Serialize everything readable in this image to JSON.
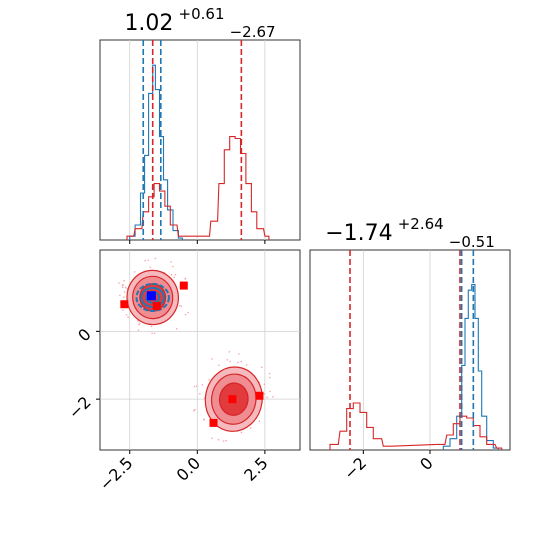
{
  "chart_data": [
    {
      "type": "histogram",
      "panel": "marginal-param-1",
      "title": {
        "base": "1.02",
        "sup": "+0.61",
        "sub": "−2.67"
      },
      "x_range": [
        -3.6,
        3.8
      ],
      "grid": true,
      "series": [
        {
          "color": "#1f77b4",
          "bins": [
            [
              -2.5,
              0.02
            ],
            [
              -2.3,
              0.08
            ],
            [
              -2.1,
              0.25
            ],
            [
              -1.95,
              0.45
            ],
            [
              -1.8,
              0.78
            ],
            [
              -1.65,
              0.93
            ],
            [
              -1.55,
              0.8
            ],
            [
              -1.4,
              0.55
            ],
            [
              -1.25,
              0.32
            ],
            [
              -1.1,
              0.16
            ],
            [
              -0.9,
              0.05
            ],
            [
              -0.7,
              0.01
            ]
          ]
        },
        {
          "color": "#d62728",
          "bins": [
            [
              -2.6,
              0.02
            ],
            [
              -2.3,
              0.06
            ],
            [
              -2.0,
              0.15
            ],
            [
              -1.8,
              0.23
            ],
            [
              -1.6,
              0.3
            ],
            [
              -1.4,
              0.26
            ],
            [
              -1.2,
              0.18
            ],
            [
              -1.0,
              0.08
            ],
            [
              -0.7,
              0.02
            ],
            [
              0.2,
              0.02
            ],
            [
              0.5,
              0.1
            ],
            [
              0.8,
              0.3
            ],
            [
              1.0,
              0.48
            ],
            [
              1.2,
              0.55
            ],
            [
              1.4,
              0.54
            ],
            [
              1.6,
              0.46
            ],
            [
              1.8,
              0.3
            ],
            [
              2.0,
              0.15
            ],
            [
              2.2,
              0.06
            ],
            [
              2.5,
              0.02
            ]
          ]
        }
      ],
      "quantile_lines": [
        {
          "x": -2.0,
          "color": "#1f77b4"
        },
        {
          "x": -1.35,
          "color": "#1f77b4"
        },
        {
          "x": -1.65,
          "color": "#d62728"
        },
        {
          "x": 1.63,
          "color": "#d62728"
        }
      ]
    },
    {
      "type": "contour-scatter",
      "panel": "joint",
      "x_range": [
        -3.6,
        3.8
      ],
      "y_range": [
        -3.5,
        2.4
      ],
      "x_ticks": [
        "-2.5",
        "0.0",
        "2.5"
      ],
      "y_ticks": [
        "0",
        "-2"
      ],
      "grid": true,
      "red_markers": [
        [
          -2.7,
          0.8
        ],
        [
          -1.5,
          0.75
        ],
        [
          -0.5,
          1.35
        ],
        [
          1.3,
          -2.0
        ],
        [
          2.3,
          -1.9
        ],
        [
          0.6,
          -2.7
        ]
      ],
      "blue_markers": [
        [
          -1.7,
          1.05
        ]
      ],
      "red_blobs": [
        {
          "cx": -1.65,
          "cy": 1.0,
          "rx": 0.95,
          "ry": 0.8
        },
        {
          "cx": 1.35,
          "cy": -2.0,
          "rx": 1.05,
          "ry": 0.95
        }
      ],
      "blue_blob": {
        "cx": -1.65,
        "cy": 1.0,
        "rx": 0.6,
        "ry": 0.4
      }
    },
    {
      "type": "histogram",
      "panel": "marginal-param-2",
      "title": {
        "base": "−1.74",
        "sup": "+2.64",
        "sub": "−0.51"
      },
      "x_range": [
        -3.6,
        2.4
      ],
      "x_ticks": [
        "-2",
        "0"
      ],
      "grid": true,
      "series": [
        {
          "color": "#1f77b4",
          "bins": [
            [
              0.4,
              0.02
            ],
            [
              0.6,
              0.06
            ],
            [
              0.8,
              0.18
            ],
            [
              0.95,
              0.45
            ],
            [
              1.05,
              0.7
            ],
            [
              1.15,
              0.85
            ],
            [
              1.25,
              0.88
            ],
            [
              1.35,
              0.7
            ],
            [
              1.45,
              0.42
            ],
            [
              1.55,
              0.18
            ],
            [
              1.7,
              0.05
            ],
            [
              1.9,
              0.01
            ]
          ]
        },
        {
          "color": "#d62728",
          "bins": [
            [
              -3.0,
              0.03
            ],
            [
              -2.7,
              0.1
            ],
            [
              -2.5,
              0.22
            ],
            [
              -2.3,
              0.25
            ],
            [
              -2.1,
              0.2
            ],
            [
              -1.9,
              0.12
            ],
            [
              -1.7,
              0.06
            ],
            [
              -1.4,
              0.02
            ],
            [
              0.2,
              0.03
            ],
            [
              0.5,
              0.08
            ],
            [
              0.7,
              0.14
            ],
            [
              0.9,
              0.18
            ],
            [
              1.1,
              0.17
            ],
            [
              1.3,
              0.13
            ],
            [
              1.5,
              0.07
            ],
            [
              1.7,
              0.03
            ],
            [
              2.0,
              0.01
            ]
          ]
        }
      ],
      "quantile_lines": [
        {
          "x": -2.4,
          "color": "#d62728"
        },
        {
          "x": 0.9,
          "color": "#d62728"
        },
        {
          "x": 0.95,
          "color": "#1f77b4"
        },
        {
          "x": 1.3,
          "color": "#1f77b4"
        }
      ]
    }
  ]
}
